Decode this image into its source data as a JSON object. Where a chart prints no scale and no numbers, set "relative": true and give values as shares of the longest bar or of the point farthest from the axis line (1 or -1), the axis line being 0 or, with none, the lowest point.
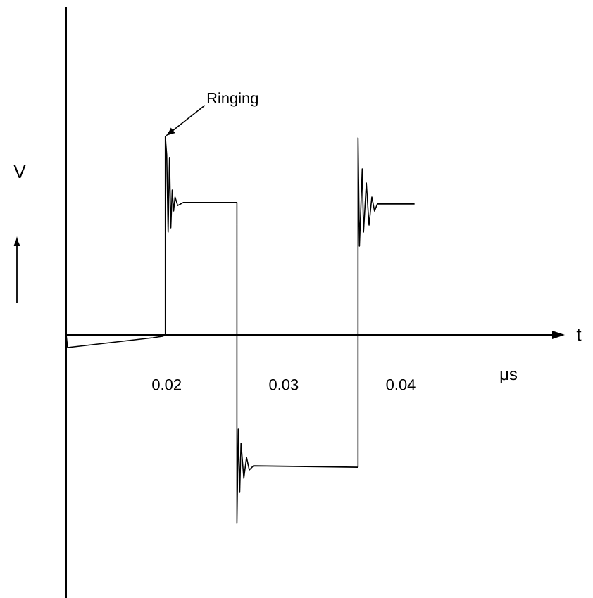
{
  "chart_data": {
    "type": "line",
    "relative": true,
    "xlabel": "t",
    "ylabel": "V",
    "xlim": [
      0.01141,
      0.05294
    ],
    "xticks": [
      0.02,
      0.03,
      0.04
    ],
    "marker": "none",
    "line_style": "solid",
    "grid": false,
    "annotations": [
      {
        "text": "Ringing",
        "x": 0.01988,
        "y": 1
      },
      "μs"
    ],
    "series": [
      {
        "color": "#000000",
        "x": [
          0.01141,
          0.01153,
          0.01882,
          0.01965,
          0.01988,
          0.01988,
          0.02,
          0.02012,
          0.02024,
          0.02035,
          0.02047,
          0.02059,
          0.02071,
          0.02094,
          0.02141,
          0.026,
          0.026,
          0.02612,
          0.02624,
          0.02635,
          0.02659,
          0.02682,
          0.02706,
          0.02741,
          0.03635,
          0.03635,
          0.03647,
          0.03671,
          0.03682,
          0.03706,
          0.03729,
          0.03753,
          0.03776,
          0.038,
          0.04118
        ],
        "values": [
          0,
          -0.064,
          -0.014,
          -0.007,
          0,
          1,
          0.908,
          0.518,
          0.894,
          0.539,
          0.73,
          0.624,
          0.695,
          0.652,
          0.667,
          0.667,
          -0.95,
          -0.475,
          -0.794,
          -0.546,
          -0.723,
          -0.617,
          -0.681,
          -0.66,
          -0.667,
          0.993,
          0.447,
          0.837,
          0.518,
          0.766,
          0.553,
          0.695,
          0.624,
          0.66,
          0.66
        ]
      }
    ]
  }
}
